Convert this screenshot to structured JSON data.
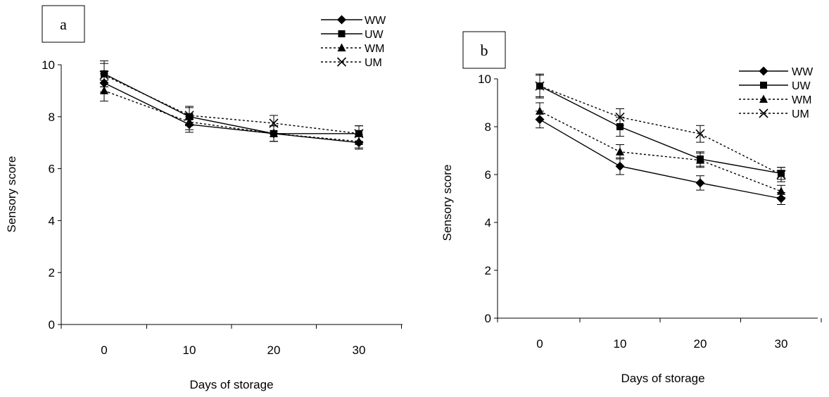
{
  "chart_data": [
    {
      "type": "line",
      "panel_label": "a",
      "xlabel": "Days of storage",
      "ylabel": "Sensory score",
      "x": [
        0,
        10,
        20,
        30
      ],
      "xticks": [
        "0",
        "10",
        "20",
        "30"
      ],
      "ylim": [
        0,
        10
      ],
      "yticks": [
        "0",
        "2",
        "4",
        "6",
        "8",
        "10"
      ],
      "grid": false,
      "legend": "top-right",
      "series": [
        {
          "name": "WW",
          "values": [
            9.3,
            7.7,
            7.35,
            7.0
          ],
          "error": [
            0.35,
            0.3,
            0.3,
            0.25
          ],
          "marker": "diamond",
          "line": "solid"
        },
        {
          "name": "UW",
          "values": [
            9.65,
            8.0,
            7.35,
            7.35
          ],
          "error": [
            0.5,
            0.35,
            0.3,
            0.3
          ],
          "marker": "square",
          "line": "solid"
        },
        {
          "name": "WM",
          "values": [
            9.0,
            7.8,
            7.35,
            7.05
          ],
          "error": [
            0.4,
            0.3,
            0.3,
            0.25
          ],
          "marker": "triangle",
          "line": "dotted"
        },
        {
          "name": "UM",
          "values": [
            9.6,
            8.05,
            7.75,
            7.35
          ],
          "error": [
            0.45,
            0.35,
            0.3,
            0.3
          ],
          "marker": "x",
          "line": "dotted"
        }
      ]
    },
    {
      "type": "line",
      "panel_label": "b",
      "xlabel": "Days of storage",
      "ylabel": "Sensory score",
      "x": [
        0,
        10,
        20,
        30
      ],
      "xticks": [
        "0",
        "10",
        "20",
        "30"
      ],
      "ylim": [
        0,
        10
      ],
      "yticks": [
        "0",
        "2",
        "4",
        "6",
        "8",
        "10"
      ],
      "grid": false,
      "legend": "top-right",
      "series": [
        {
          "name": "WW",
          "values": [
            8.3,
            6.35,
            5.65,
            5.0
          ],
          "error": [
            0.35,
            0.35,
            0.3,
            0.25
          ],
          "marker": "diamond",
          "line": "solid"
        },
        {
          "name": "UW",
          "values": [
            9.7,
            8.0,
            6.65,
            6.05
          ],
          "error": [
            0.5,
            0.4,
            0.3,
            0.25
          ],
          "marker": "square",
          "line": "solid"
        },
        {
          "name": "WM",
          "values": [
            8.65,
            6.95,
            6.6,
            5.3
          ],
          "error": [
            0.35,
            0.3,
            0.3,
            0.25
          ],
          "marker": "triangle",
          "line": "dotted"
        },
        {
          "name": "UM",
          "values": [
            9.7,
            8.4,
            7.7,
            6.0
          ],
          "error": [
            0.45,
            0.35,
            0.35,
            0.3
          ],
          "marker": "x",
          "line": "dotted"
        }
      ]
    }
  ]
}
